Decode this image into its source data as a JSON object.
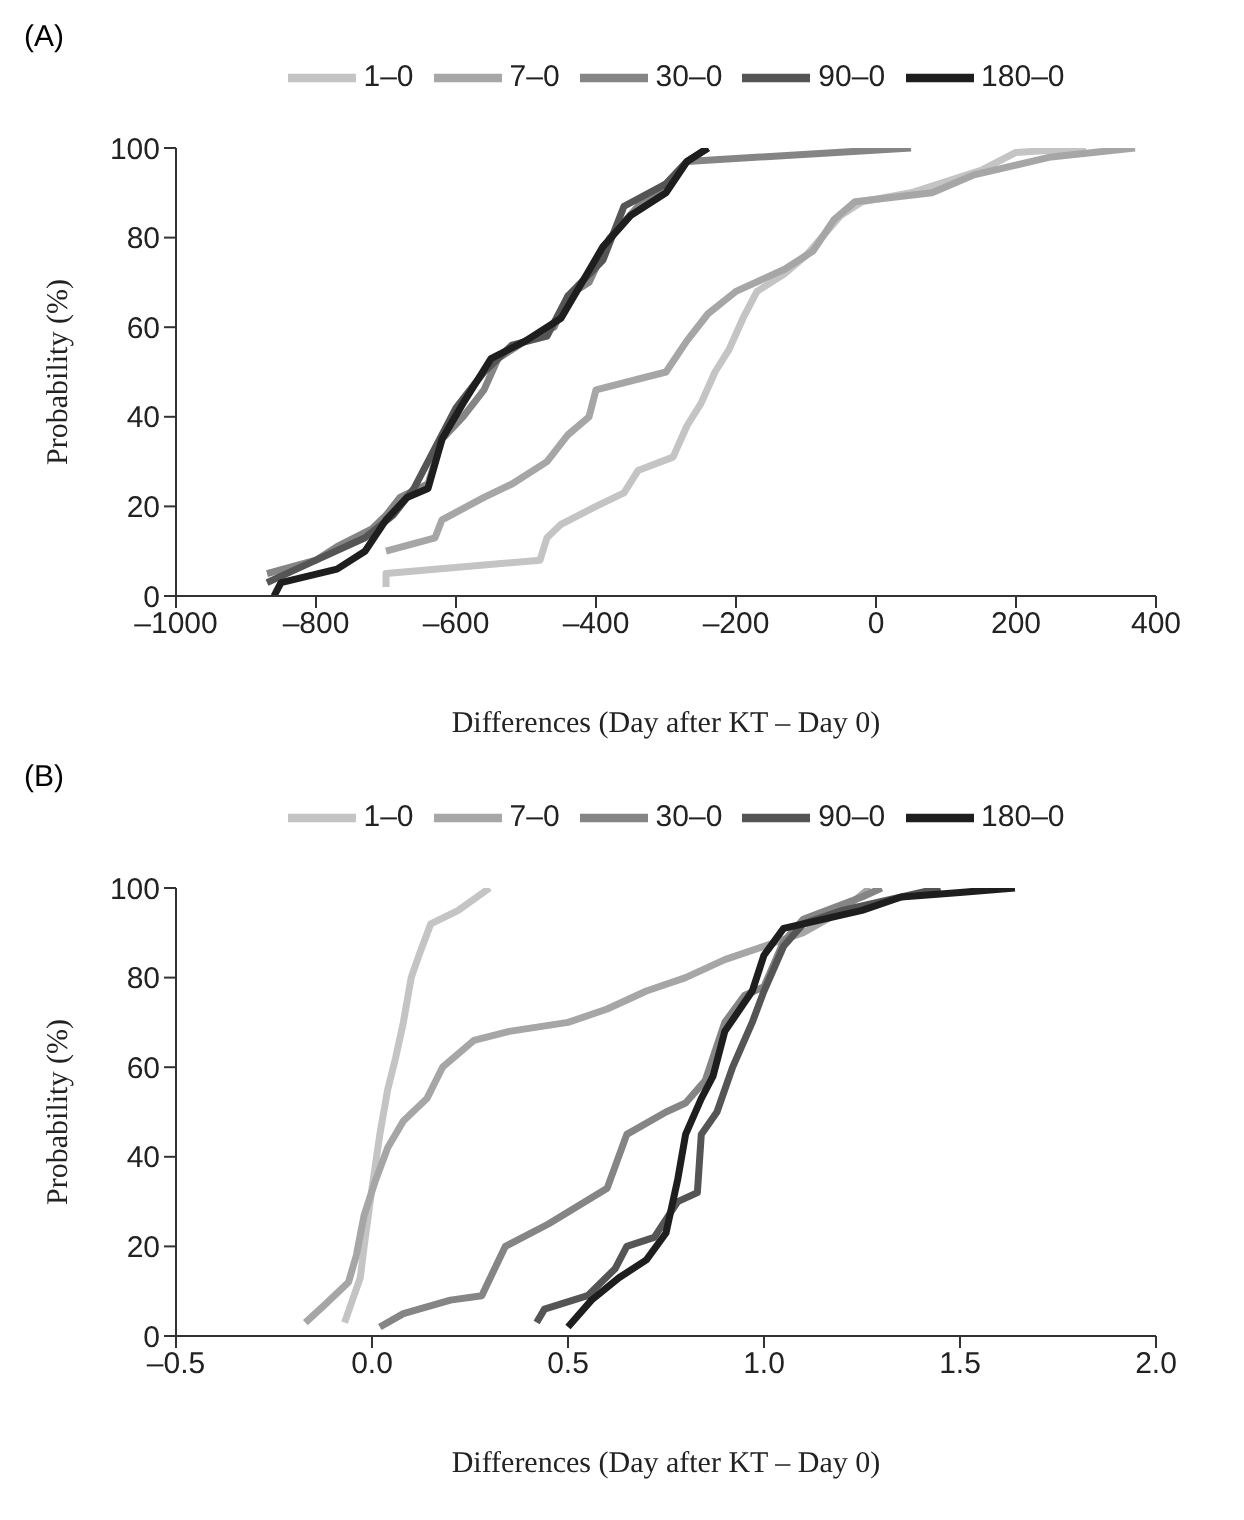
{
  "chart_data": [
    {
      "type": "line",
      "title": "(A)",
      "xlabel": "Differences (Day after KT – Day 0)",
      "ylabel": "Probability (%)",
      "xlim": [
        -1000,
        400
      ],
      "xticks": [
        {
          "value": -1000,
          "label": "–1000"
        },
        {
          "value": -800,
          "label": "–800"
        },
        {
          "value": -600,
          "label": "–600"
        },
        {
          "value": -400,
          "label": "–400"
        },
        {
          "value": -200,
          "label": "–200"
        },
        0,
        200,
        400
      ],
      "ylim": [
        0,
        100
      ],
      "yticks": [
        0,
        20,
        40,
        60,
        80,
        100
      ],
      "legend": "top",
      "grid": false,
      "series": [
        {
          "name": "1–0",
          "color": "#c4c4c4",
          "x": [
            -700,
            -700,
            -480,
            -470,
            -450,
            -400,
            -360,
            -340,
            -290,
            -270,
            -250,
            -230,
            -210,
            -190,
            -170,
            -130,
            -100,
            -50,
            -20,
            50,
            150,
            200,
            300
          ],
          "values": [
            2,
            5,
            8,
            13,
            16,
            20,
            23,
            28,
            31,
            38,
            43,
            50,
            55,
            62,
            68,
            72,
            76,
            85,
            88,
            90,
            95,
            99,
            100
          ]
        },
        {
          "name": "7–0",
          "color": "#a6a6a6",
          "x": [
            -700,
            -630,
            -620,
            -560,
            -520,
            -470,
            -440,
            -410,
            -400,
            -300,
            -270,
            -240,
            -200,
            -130,
            -90,
            -60,
            -30,
            80,
            140,
            250,
            370
          ],
          "values": [
            10,
            13,
            17,
            22,
            25,
            30,
            36,
            40,
            46,
            50,
            57,
            63,
            68,
            73,
            77,
            84,
            88,
            90,
            94,
            98,
            100
          ]
        },
        {
          "name": "30–0",
          "color": "#858585",
          "x": [
            -870,
            -800,
            -770,
            -720,
            -700,
            -680,
            -640,
            -620,
            -590,
            -560,
            -540,
            -500,
            -460,
            -440,
            -410,
            -380,
            -340,
            -300,
            -270,
            50
          ],
          "values": [
            5,
            8,
            11,
            15,
            18,
            22,
            25,
            35,
            40,
            46,
            53,
            57,
            60,
            67,
            70,
            80,
            87,
            92,
            97,
            100
          ]
        },
        {
          "name": "90–0",
          "color": "#555555",
          "x": [
            -870,
            -800,
            -730,
            -690,
            -660,
            -630,
            -600,
            -560,
            -520,
            -470,
            -440,
            -390,
            -360,
            -300,
            -270,
            -240
          ],
          "values": [
            3,
            8,
            13,
            18,
            24,
            33,
            42,
            50,
            56,
            58,
            67,
            75,
            87,
            92,
            97,
            100
          ]
        },
        {
          "name": "180–0",
          "color": "#1e1e1e",
          "x": [
            -860,
            -850,
            -770,
            -730,
            -700,
            -670,
            -640,
            -620,
            -590,
            -550,
            -500,
            -450,
            -420,
            -390,
            -350,
            -300,
            -270,
            -240
          ],
          "values": [
            0,
            3,
            6,
            10,
            17,
            22,
            24,
            35,
            43,
            53,
            57,
            62,
            70,
            78,
            85,
            90,
            97,
            100
          ]
        }
      ]
    },
    {
      "type": "line",
      "title": "(B)",
      "xlabel": "Differences (Day after KT – Day 0)",
      "ylabel": "Probability (%)",
      "xlim": [
        -0.5,
        2.0
      ],
      "xticks": [
        {
          "value": -0.5,
          "label": "–0.5"
        },
        {
          "value": 0,
          "label": "0.0"
        },
        0.5,
        {
          "value": 1,
          "label": "1.0"
        },
        1.5,
        {
          "value": 2,
          "label": "2.0"
        }
      ],
      "ylim": [
        0,
        100
      ],
      "yticks": [
        0,
        20,
        40,
        60,
        80,
        100
      ],
      "legend": "top",
      "grid": false,
      "series": [
        {
          "name": "1–0",
          "color": "#c4c4c4",
          "x": [
            -0.07,
            -0.05,
            -0.03,
            -0.02,
            0,
            0.02,
            0.04,
            0.06,
            0.08,
            0.1,
            0.12,
            0.15,
            0.22,
            0.3
          ],
          "values": [
            3,
            8,
            13,
            20,
            33,
            45,
            55,
            62,
            70,
            80,
            85,
            92,
            95,
            100
          ]
        },
        {
          "name": "7–0",
          "color": "#a6a6a6",
          "x": [
            -0.17,
            -0.12,
            -0.06,
            -0.04,
            -0.02,
            0.01,
            0.04,
            0.08,
            0.14,
            0.18,
            0.26,
            0.35,
            0.5,
            0.6,
            0.7,
            0.8,
            0.9,
            1.0,
            1.1,
            1.2,
            1.27
          ],
          "values": [
            3,
            7,
            12,
            18,
            27,
            35,
            42,
            48,
            53,
            60,
            66,
            68,
            70,
            73,
            77,
            80,
            84,
            87,
            90,
            95,
            100
          ]
        },
        {
          "name": "30–0",
          "color": "#858585",
          "x": [
            0.02,
            0.08,
            0.2,
            0.28,
            0.34,
            0.45,
            0.6,
            0.65,
            0.75,
            0.8,
            0.85,
            0.9,
            0.95,
            1.0,
            1.05,
            1.1,
            1.25,
            1.3
          ],
          "values": [
            2,
            5,
            8,
            9,
            20,
            25,
            33,
            45,
            50,
            52,
            57,
            70,
            76,
            78,
            88,
            93,
            98,
            100
          ]
        },
        {
          "name": "90–0",
          "color": "#555555",
          "x": [
            0.42,
            0.44,
            0.55,
            0.62,
            0.65,
            0.72,
            0.78,
            0.83,
            0.84,
            0.88,
            0.92,
            0.97,
            1.0,
            1.05,
            1.1,
            1.2,
            1.3,
            1.45
          ],
          "values": [
            3,
            6,
            9,
            15,
            20,
            22,
            30,
            32,
            45,
            50,
            60,
            70,
            77,
            87,
            92,
            95,
            97,
            100
          ]
        },
        {
          "name": "180–0",
          "color": "#1e1e1e",
          "x": [
            0.5,
            0.56,
            0.63,
            0.7,
            0.75,
            0.78,
            0.8,
            0.84,
            0.87,
            0.9,
            0.97,
            1.0,
            1.05,
            1.15,
            1.25,
            1.35,
            1.5,
            1.64
          ],
          "values": [
            2,
            8,
            13,
            17,
            23,
            35,
            45,
            53,
            58,
            68,
            77,
            85,
            91,
            93,
            95,
            98,
            99,
            100
          ]
        }
      ]
    }
  ]
}
